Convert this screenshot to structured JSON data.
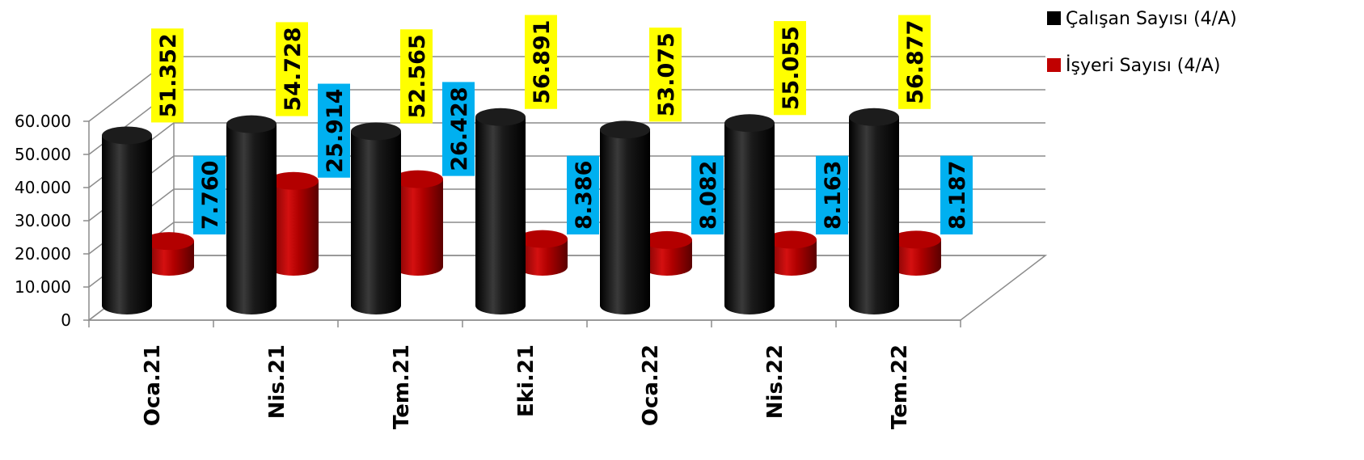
{
  "chart_data": {
    "type": "bar",
    "style": "3d-cylinder",
    "categories": [
      "Oca.21",
      "Nis.21",
      "Tem.21",
      "Eki.21",
      "Oca.22",
      "Nis.22",
      "Tem.22"
    ],
    "series": [
      {
        "name": "Çalışan Sayısı (4/A)",
        "color": "#000000",
        "values": [
          51352,
          54728,
          52565,
          56891,
          53075,
          55055,
          56877
        ],
        "labels": [
          "51.352",
          "54.728",
          "52.565",
          "56.891",
          "53.075",
          "55.055",
          "56.877"
        ],
        "label_bg": "#ffff00"
      },
      {
        "name": "İşyeri Sayısı (4/A)",
        "color": "#c00000",
        "values": [
          7760,
          25914,
          26428,
          8386,
          8082,
          8163,
          8187
        ],
        "labels": [
          "7.760",
          "25.914",
          "26.428",
          "8.386",
          "8.082",
          "8.163",
          "8.187"
        ],
        "label_bg": "#00b0f0"
      }
    ],
    "y_ticks": [
      "0",
      "10.000",
      "20.000",
      "30.000",
      "40.000",
      "50.000",
      "60.000"
    ],
    "ylim": [
      0,
      60000
    ],
    "grid": true,
    "legend_position": "top-right",
    "title": "",
    "xlabel": "",
    "ylabel": ""
  }
}
